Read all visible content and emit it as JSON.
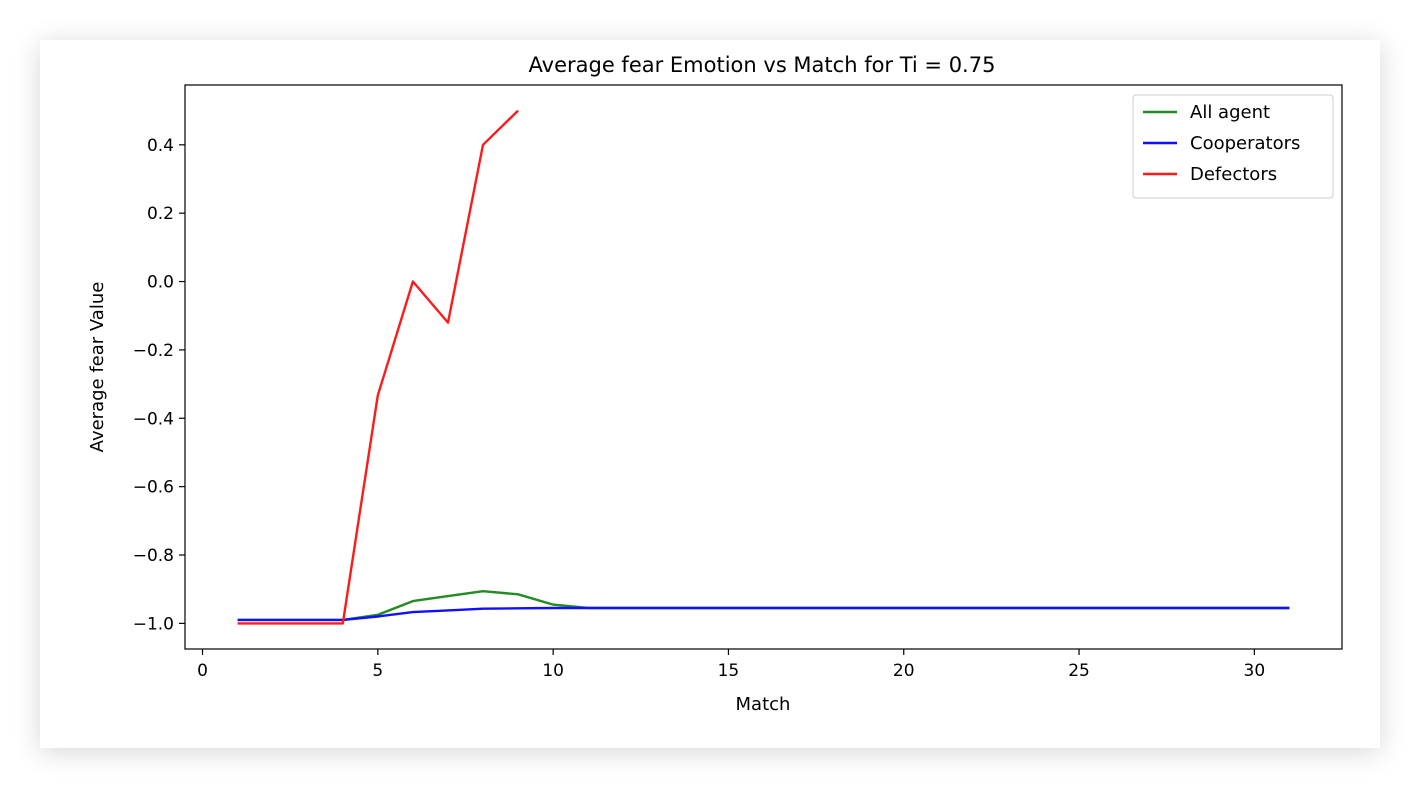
{
  "chart_data": {
    "type": "line",
    "title": "Average fear Emotion vs Match for Ti = 0.75",
    "xlabel": "Match",
    "ylabel": "Average fear Value",
    "xlim": [
      -0.5,
      32.5
    ],
    "ylim": [
      -1.075,
      0.575
    ],
    "xticks": [
      0,
      5,
      10,
      15,
      20,
      25,
      30
    ],
    "yticks": [
      0.4,
      0.2,
      0.0,
      -0.2,
      -0.4,
      -0.6,
      -0.8,
      -1.0
    ],
    "ytick_labels": [
      "0.4",
      "0.2",
      "0.0",
      "−0.2",
      "−0.4",
      "−0.6",
      "−0.8",
      "−1.0"
    ],
    "grid": false,
    "legend_position": "top-right",
    "series": [
      {
        "name": "All agent",
        "color": "#228b22",
        "x": [
          1,
          2,
          3,
          4,
          5,
          6,
          7,
          8,
          9,
          10,
          11,
          12,
          13,
          14,
          15,
          16,
          17,
          18,
          19,
          20,
          21,
          22,
          23,
          24,
          25,
          26,
          27,
          28,
          29,
          30,
          31
        ],
        "y": [
          -0.99,
          -0.99,
          -0.99,
          -0.99,
          -0.975,
          -0.935,
          -0.92,
          -0.906,
          -0.915,
          -0.945,
          -0.955,
          -0.955,
          -0.955,
          -0.955,
          -0.955,
          -0.955,
          -0.955,
          -0.955,
          -0.955,
          -0.955,
          -0.955,
          -0.955,
          -0.955,
          -0.955,
          -0.955,
          -0.955,
          -0.955,
          -0.955,
          -0.955,
          -0.955,
          -0.955
        ]
      },
      {
        "name": "Cooperators",
        "color": "#1010ff",
        "x": [
          1,
          2,
          3,
          4,
          5,
          6,
          7,
          8,
          9,
          10,
          11,
          12,
          13,
          14,
          15,
          16,
          17,
          18,
          19,
          20,
          21,
          22,
          23,
          24,
          25,
          26,
          27,
          28,
          29,
          30,
          31
        ],
        "y": [
          -0.99,
          -0.99,
          -0.99,
          -0.99,
          -0.98,
          -0.967,
          -0.962,
          -0.957,
          -0.956,
          -0.955,
          -0.955,
          -0.955,
          -0.955,
          -0.955,
          -0.955,
          -0.955,
          -0.955,
          -0.955,
          -0.955,
          -0.955,
          -0.955,
          -0.955,
          -0.955,
          -0.955,
          -0.955,
          -0.955,
          -0.955,
          -0.955,
          -0.955,
          -0.955,
          -0.955
        ]
      },
      {
        "name": "Defectors",
        "color": "#ff1a1a",
        "x": [
          1,
          2,
          3,
          4,
          5,
          6,
          7,
          8,
          9
        ],
        "y": [
          -1.0,
          -1.0,
          -1.0,
          -1.0,
          -0.333,
          0.0,
          -0.12,
          0.4,
          0.5
        ]
      }
    ]
  }
}
